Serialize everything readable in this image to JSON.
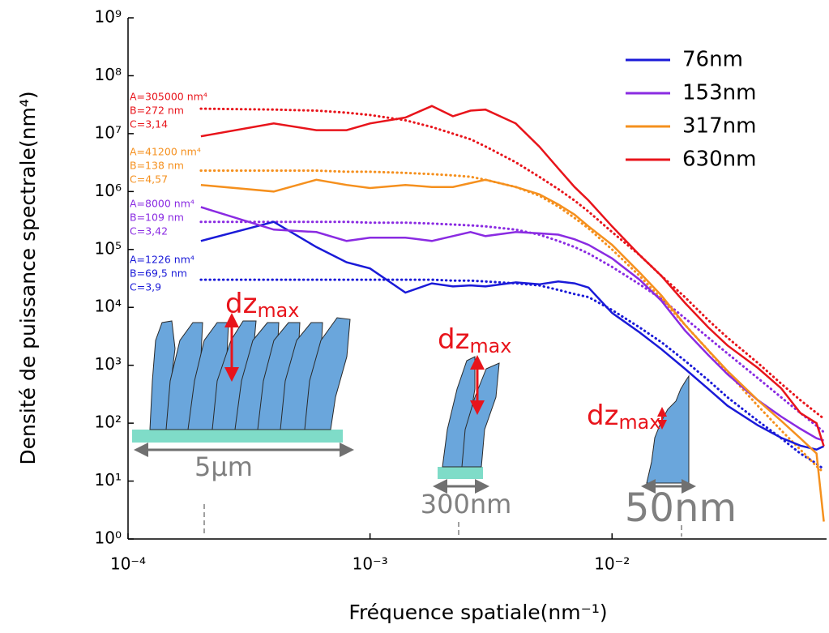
{
  "chart_data": {
    "type": "line",
    "x_label": "Fréquence spatiale(nm⁻¹)",
    "y_label": "Densité de puissance spectrale(nm⁴)",
    "log_x": true,
    "log_y": true,
    "xlim": [
      0.0001,
      0.077
    ],
    "ylim": [
      1,
      1000000000
    ],
    "xticks": [
      {
        "value": 0.0001,
        "label": "10⁻⁴"
      },
      {
        "value": 0.001,
        "label": "10⁻³"
      },
      {
        "value": 0.01,
        "label": "10⁻²"
      }
    ],
    "yticks": [
      {
        "value": 1,
        "label": "10⁰"
      },
      {
        "value": 10,
        "label": "10¹"
      },
      {
        "value": 100,
        "label": "10²"
      },
      {
        "value": 1000,
        "label": "10³"
      },
      {
        "value": 10000,
        "label": "10⁴"
      },
      {
        "value": 100000,
        "label": "10⁵"
      },
      {
        "value": 1000000,
        "label": "10⁶"
      },
      {
        "value": 10000000,
        "label": "10⁷"
      },
      {
        "value": 100000000,
        "label": "10⁸"
      },
      {
        "value": 1000000000,
        "label": "10⁹"
      }
    ],
    "legend": "top-right",
    "x": [
      0.0002,
      0.0004,
      0.0006,
      0.0008,
      0.001,
      0.0014,
      0.0018,
      0.0022,
      0.0026,
      0.003,
      0.004,
      0.005,
      0.006,
      0.007,
      0.008,
      0.01,
      0.013,
      0.016,
      0.02,
      0.025,
      0.03,
      0.04,
      0.05,
      0.06,
      0.07,
      0.075
    ],
    "series": [
      {
        "name": "76nm",
        "color": "#1a1ad8",
        "values": [
          140000,
          300000,
          110000,
          60000,
          47000,
          18000,
          26000,
          23000,
          24000,
          23000,
          27000,
          25000,
          28000,
          26000,
          22000,
          8000,
          3700,
          1900,
          870,
          390,
          200,
          92,
          56,
          41,
          35,
          40
        ]
      },
      {
        "name": "153nm",
        "color": "#8a2be2",
        "values": [
          540000,
          220000,
          200000,
          140000,
          160000,
          160000,
          140000,
          170000,
          200000,
          170000,
          200000,
          190000,
          180000,
          150000,
          120000,
          70000,
          30000,
          13000,
          4000,
          1500,
          700,
          250,
          130,
          80,
          55,
          50
        ]
      },
      {
        "name": "317nm",
        "color": "#f5901e",
        "values": [
          1300000,
          1000000,
          1600000,
          1300000,
          1150000,
          1300000,
          1200000,
          1200000,
          1400000,
          1600000,
          1200000,
          900000,
          600000,
          400000,
          250000,
          120000,
          40000,
          16000,
          5000,
          1800,
          800,
          250,
          110,
          55,
          30,
          2
        ]
      },
      {
        "name": "630nm",
        "color": "#e8141b",
        "values": [
          9000000,
          15000000,
          11500000,
          11500000,
          15000000,
          19000000,
          30000000,
          20000000,
          25000000,
          26000000,
          15000000,
          6000000,
          2500000,
          1200000,
          700000,
          250000,
          80000,
          35000,
          12000,
          4500,
          2200,
          900,
          400,
          150,
          100,
          40
        ]
      }
    ],
    "fits": [
      {
        "color": "#1a1ad8",
        "line_style": "dotted",
        "values": [
          30000,
          30000,
          30000,
          30000,
          30000,
          30000,
          30000,
          29000,
          29000,
          28000,
          26000,
          24000,
          20000,
          17000,
          15000,
          9000,
          4500,
          2500,
          1200,
          550,
          280,
          110,
          55,
          30,
          20,
          16
        ]
      },
      {
        "color": "#8a2be2",
        "line_style": "dotted",
        "values": [
          300000,
          300000,
          300000,
          300000,
          290000,
          290000,
          280000,
          270000,
          260000,
          250000,
          220000,
          180000,
          140000,
          110000,
          85000,
          50000,
          25000,
          14000,
          6500,
          3000,
          1600,
          600,
          280,
          150,
          90,
          70
        ]
      },
      {
        "color": "#f5901e",
        "line_style": "dotted",
        "values": [
          2300000,
          2300000,
          2300000,
          2200000,
          2200000,
          2100000,
          2000000,
          1900000,
          1800000,
          1600000,
          1200000,
          850000,
          550000,
          350000,
          230000,
          100000,
          35000,
          14000,
          5000,
          1800,
          750,
          200,
          75,
          35,
          18,
          14
        ]
      },
      {
        "color": "#e8141b",
        "line_style": "dotted",
        "values": [
          27000000,
          26000000,
          25000000,
          23000000,
          21000000,
          17000000,
          13000000,
          10000000,
          8000000,
          6000000,
          3200000,
          1800000,
          1100000,
          700000,
          450000,
          200000,
          80000,
          35000,
          15000,
          6000,
          3000,
          1100,
          480,
          250,
          150,
          120
        ]
      }
    ],
    "annotations": [
      {
        "color": "#e8141b",
        "lines": [
          "A=305000 nm⁴",
          "B=272 nm",
          "C=3,14"
        ]
      },
      {
        "color": "#f5901e",
        "lines": [
          "A=41200 nm⁴",
          "B=138 nm",
          "C=4,57"
        ]
      },
      {
        "color": "#8a2be2",
        "lines": [
          "A=8000 nm⁴",
          "B=109 nm",
          "C=3,42"
        ]
      },
      {
        "color": "#1a1ad8",
        "lines": [
          "A=1226 nm⁴",
          "B=69,5 nm",
          "C=3,9"
        ]
      }
    ],
    "illustrations": [
      {
        "label": "dz",
        "subscript": "max",
        "scale": "5µm"
      },
      {
        "label": "dz",
        "subscript": "max",
        "scale": "300nm"
      },
      {
        "label": "dz",
        "subscript": "max",
        "scale": "50nm"
      }
    ]
  }
}
